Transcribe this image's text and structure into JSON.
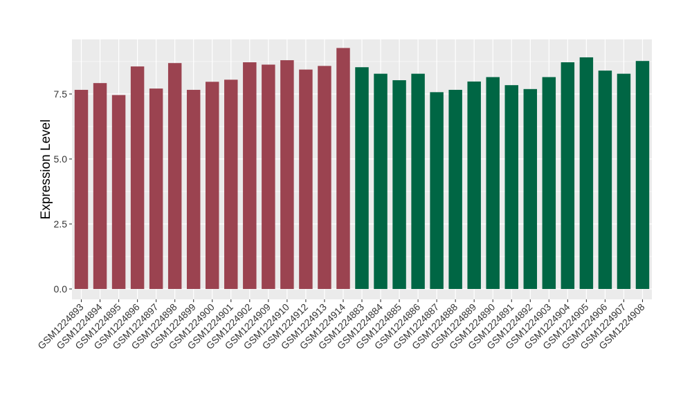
{
  "chart_data": {
    "type": "bar",
    "title": "",
    "xlabel": "",
    "ylabel": "Expression Level",
    "ylim": [
      -0.4,
      9.6
    ],
    "yticks": [
      0.0,
      2.5,
      5.0,
      7.5
    ],
    "ytick_labels": [
      "0.0",
      "2.5",
      "5.0",
      "7.5"
    ],
    "grid": true,
    "legend": "none",
    "panel_color": "#EBEBEB",
    "grid_color": "#FFFFFF",
    "categories": [
      "GSM1224893",
      "GSM1224894",
      "GSM1224895",
      "GSM1224896",
      "GSM1224897",
      "GSM1224898",
      "GSM1224899",
      "GSM1224900",
      "GSM1224901",
      "GSM1224902",
      "GSM1224909",
      "GSM1224910",
      "GSM1224912",
      "GSM1224913",
      "GSM1224914",
      "GSM1224883",
      "GSM1224884",
      "GSM1224885",
      "GSM1224886",
      "GSM1224887",
      "GSM1224888",
      "GSM1224889",
      "GSM1224890",
      "GSM1224891",
      "GSM1224892",
      "GSM1224903",
      "GSM1224904",
      "GSM1224905",
      "GSM1224906",
      "GSM1224907",
      "GSM1224908"
    ],
    "values": [
      7.66,
      7.92,
      7.46,
      8.56,
      7.71,
      8.69,
      7.66,
      7.97,
      8.05,
      8.72,
      8.63,
      8.8,
      8.44,
      8.58,
      9.27,
      8.53,
      8.28,
      8.03,
      8.28,
      7.57,
      7.66,
      7.98,
      8.15,
      7.84,
      7.69,
      8.15,
      8.72,
      8.91,
      8.4,
      8.28,
      8.77
    ],
    "bar_colors": [
      "#9B4350",
      "#9B4350",
      "#9B4350",
      "#9B4350",
      "#9B4350",
      "#9B4350",
      "#9B4350",
      "#9B4350",
      "#9B4350",
      "#9B4350",
      "#9B4350",
      "#9B4350",
      "#9B4350",
      "#9B4350",
      "#9B4350",
      "#006644",
      "#006644",
      "#006644",
      "#006644",
      "#006644",
      "#006644",
      "#006644",
      "#006644",
      "#006644",
      "#006644",
      "#006644",
      "#006644",
      "#006644",
      "#006644",
      "#006644",
      "#006644"
    ]
  }
}
